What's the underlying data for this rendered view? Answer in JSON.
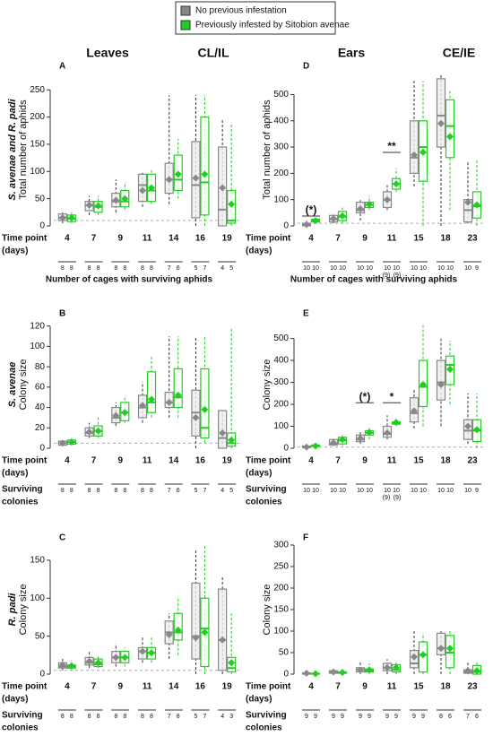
{
  "chart_data": [
    {
      "type": "box",
      "letter": "A",
      "header": "Leaves",
      "treatment": "CL/IL",
      "row_label": "S. avenae and R. padi",
      "ylabel": "Total number of aphids",
      "xlabel": [
        "Time point",
        "(days)"
      ],
      "categories": [
        "4",
        "7",
        "9",
        "11",
        "14",
        "16",
        "19"
      ],
      "ylim": [
        0,
        280
      ],
      "yticks": [
        0,
        50,
        100,
        150,
        200,
        250
      ],
      "reference_line": 10,
      "series": [
        {
          "name": "No previous infestation",
          "color": "#888888",
          "low": [
            5,
            20,
            25,
            35,
            40,
            0,
            0
          ],
          "q1": [
            10,
            28,
            35,
            45,
            60,
            15,
            0
          ],
          "median": [
            15,
            38,
            45,
            75,
            85,
            75,
            30
          ],
          "q3": [
            22,
            45,
            60,
            95,
            115,
            155,
            145
          ],
          "high": [
            25,
            55,
            85,
            100,
            240,
            240,
            195
          ],
          "mean": [
            15,
            38,
            47,
            65,
            85,
            88,
            70
          ]
        },
        {
          "name": "Previously infested by Sitobion avenae",
          "color": "#22cc22",
          "low": [
            5,
            20,
            30,
            40,
            50,
            0,
            0
          ],
          "q1": [
            8,
            25,
            35,
            45,
            65,
            20,
            5
          ],
          "median": [
            13,
            35,
            45,
            65,
            85,
            80,
            10
          ],
          "q3": [
            20,
            45,
            65,
            95,
            130,
            200,
            65
          ],
          "high": [
            25,
            55,
            80,
            105,
            160,
            240,
            190
          ],
          "mean": [
            15,
            37,
            50,
            70,
            95,
            95,
            40
          ]
        }
      ],
      "counts_label": [
        "Number of cages with surviving aphids"
      ],
      "counts": [
        [
          8,
          8
        ],
        [
          8,
          8
        ],
        [
          8,
          8
        ],
        [
          8,
          8
        ],
        [
          7,
          6
        ],
        [
          5,
          7
        ],
        [
          4,
          5
        ]
      ]
    },
    {
      "type": "box",
      "letter": "B",
      "row_label": "S. avenae",
      "ylabel": "Colony size",
      "xlabel": [
        "Time point",
        "(days)"
      ],
      "categories": [
        "4",
        "7",
        "9",
        "11",
        "14",
        "16",
        "19"
      ],
      "ylim": [
        0,
        125
      ],
      "yticks": [
        0,
        20,
        40,
        60,
        80,
        100,
        120
      ],
      "reference_line": 5,
      "series": [
        {
          "color": "#888888",
          "low": [
            2,
            10,
            22,
            25,
            30,
            0,
            0
          ],
          "q1": [
            3,
            12,
            25,
            30,
            40,
            12,
            0
          ],
          "median": [
            5,
            15,
            30,
            40,
            45,
            35,
            10
          ],
          "q3": [
            7,
            20,
            40,
            52,
            55,
            57,
            37
          ],
          "high": [
            8,
            25,
            45,
            65,
            110,
            110,
            37
          ],
          "mean": [
            5,
            16,
            32,
            42,
            45,
            30,
            15
          ]
        },
        {
          "color": "#22cc22",
          "low": [
            3,
            10,
            25,
            30,
            30,
            5,
            0
          ],
          "q1": [
            4,
            12,
            27,
            35,
            40,
            10,
            2
          ],
          "median": [
            6,
            17,
            35,
            45,
            50,
            20,
            5
          ],
          "q3": [
            8,
            22,
            45,
            75,
            78,
            78,
            15
          ],
          "high": [
            10,
            30,
            50,
            90,
            110,
            110,
            118
          ],
          "mean": [
            6,
            17,
            35,
            48,
            52,
            38,
            8
          ]
        }
      ],
      "counts_label": [
        "Surviving",
        "colonies"
      ],
      "counts": [
        [
          8,
          8
        ],
        [
          8,
          8
        ],
        [
          8,
          8
        ],
        [
          8,
          8
        ],
        [
          7,
          6
        ],
        [
          5,
          7
        ],
        [
          4,
          5
        ]
      ]
    },
    {
      "type": "box",
      "letter": "C",
      "row_label": "R. padi",
      "ylabel": "Colony size",
      "xlabel": [
        "Time point",
        "(days)"
      ],
      "categories": [
        "4",
        "7",
        "9",
        "11",
        "14",
        "16",
        "19"
      ],
      "ylim": [
        0,
        170
      ],
      "yticks": [
        0,
        50,
        100,
        150
      ],
      "reference_line": 5,
      "series": [
        {
          "color": "#888888",
          "low": [
            5,
            8,
            10,
            15,
            20,
            0,
            0
          ],
          "q1": [
            8,
            12,
            15,
            20,
            40,
            20,
            5
          ],
          "median": [
            10,
            15,
            22,
            30,
            55,
            50,
            45
          ],
          "q3": [
            15,
            22,
            30,
            35,
            70,
            120,
            112
          ],
          "high": [
            20,
            30,
            40,
            50,
            80,
            165,
            130
          ],
          "mean": [
            12,
            17,
            22,
            30,
            52,
            48,
            45
          ]
        },
        {
          "color": "#22cc22",
          "low": [
            5,
            8,
            10,
            15,
            25,
            0,
            0
          ],
          "q1": [
            8,
            10,
            15,
            20,
            45,
            10,
            3
          ],
          "median": [
            10,
            13,
            22,
            28,
            55,
            60,
            8
          ],
          "q3": [
            12,
            20,
            30,
            35,
            80,
            100,
            22
          ],
          "high": [
            18,
            25,
            35,
            50,
            100,
            170,
            80
          ],
          "mean": [
            11,
            15,
            22,
            28,
            58,
            55,
            15
          ]
        }
      ],
      "counts_label": [
        "Surviving",
        "colonies"
      ],
      "counts": [
        [
          8,
          8
        ],
        [
          8,
          8
        ],
        [
          8,
          8
        ],
        [
          8,
          8
        ],
        [
          7,
          8
        ],
        [
          5,
          7
        ],
        [
          4,
          3
        ]
      ]
    },
    {
      "type": "box",
      "letter": "D",
      "header": "Ears",
      "treatment": "CE/IE",
      "ylabel": "Total number of aphids",
      "xlabel": [
        "Time point",
        "(days)"
      ],
      "categories": [
        "4",
        "7",
        "9",
        "11",
        "15",
        "18",
        "23"
      ],
      "ylim": [
        0,
        580
      ],
      "yticks": [
        0,
        100,
        200,
        300,
        400,
        500
      ],
      "reference_line": 10,
      "series": [
        {
          "color": "#888888",
          "low": [
            0,
            10,
            20,
            60,
            150,
            0,
            10
          ],
          "q1": [
            0,
            15,
            50,
            70,
            200,
            300,
            15
          ],
          "median": [
            5,
            25,
            60,
            100,
            260,
            420,
            60
          ],
          "q3": [
            10,
            40,
            90,
            130,
            400,
            560,
            100
          ],
          "high": [
            20,
            45,
            100,
            160,
            560,
            580,
            245
          ],
          "mean": [
            5,
            28,
            65,
            100,
            270,
            390,
            90
          ]
        },
        {
          "color": "#22cc22",
          "low": [
            10,
            10,
            60,
            130,
            0,
            60,
            0
          ],
          "q1": [
            15,
            20,
            70,
            140,
            170,
            260,
            30
          ],
          "median": [
            20,
            35,
            80,
            160,
            300,
            380,
            75
          ],
          "q3": [
            25,
            55,
            90,
            180,
            400,
            480,
            130
          ],
          "high": [
            30,
            70,
            115,
            220,
            550,
            520,
            250
          ],
          "mean": [
            20,
            38,
            82,
            160,
            280,
            340,
            80
          ]
        }
      ],
      "annotations": [
        {
          "category": "4",
          "label": "(*)"
        },
        {
          "category": "11",
          "label": "**"
        }
      ],
      "counts_label": [
        "Number of cages with surviving aphids"
      ],
      "counts": [
        [
          10,
          10
        ],
        [
          10,
          10
        ],
        [
          10,
          10
        ],
        [
          10,
          10
        ],
        [
          10,
          10
        ],
        [
          10,
          10
        ],
        [
          10,
          9
        ]
      ],
      "count_notes": [
        null,
        null,
        null,
        [
          "(9)",
          "(9)"
        ],
        null,
        null,
        null
      ]
    },
    {
      "type": "box",
      "letter": "E",
      "ylabel": "Colony size",
      "xlabel": [
        "Time point",
        "(days)"
      ],
      "categories": [
        "4",
        "7",
        "9",
        "11",
        "15",
        "18",
        "23"
      ],
      "ylim": [
        0,
        580
      ],
      "yticks": [
        0,
        100,
        200,
        300,
        400,
        500
      ],
      "reference_line": 5,
      "series": [
        {
          "color": "#888888",
          "low": [
            0,
            10,
            20,
            40,
            90,
            100,
            20
          ],
          "q1": [
            2,
            15,
            30,
            50,
            120,
            220,
            40
          ],
          "median": [
            5,
            20,
            40,
            65,
            160,
            300,
            80
          ],
          "q3": [
            10,
            40,
            60,
            100,
            230,
            400,
            130
          ],
          "high": [
            15,
            50,
            80,
            150,
            270,
            500,
            250
          ],
          "mean": [
            5,
            25,
            45,
            70,
            170,
            290,
            100
          ]
        },
        {
          "color": "#22cc22",
          "low": [
            5,
            10,
            40,
            100,
            100,
            200,
            0
          ],
          "q1": [
            8,
            20,
            60,
            110,
            190,
            290,
            30
          ],
          "median": [
            10,
            35,
            70,
            115,
            280,
            380,
            80
          ],
          "q3": [
            15,
            50,
            80,
            120,
            400,
            420,
            130
          ],
          "high": [
            20,
            60,
            100,
            135,
            570,
            490,
            250
          ],
          "mean": [
            10,
            40,
            72,
            118,
            290,
            360,
            85
          ]
        }
      ],
      "annotations": [
        {
          "category": "9",
          "label": "(*)"
        },
        {
          "category": "11",
          "label": "*"
        }
      ],
      "counts_label": [
        "Surviving",
        "colonies"
      ],
      "counts": [
        [
          10,
          10
        ],
        [
          10,
          10
        ],
        [
          10,
          10
        ],
        [
          10,
          10
        ],
        [
          10,
          10
        ],
        [
          10,
          10
        ],
        [
          10,
          9
        ]
      ],
      "count_notes": [
        null,
        null,
        null,
        [
          "(9)",
          "(9)"
        ],
        null,
        null,
        null
      ]
    },
    {
      "type": "box",
      "letter": "F",
      "ylabel": "Colony size",
      "xlabel": [
        "Time point",
        "(days)"
      ],
      "categories": [
        "4",
        "7",
        "9",
        "11",
        "15",
        "18",
        "23"
      ],
      "ylim": [
        0,
        300
      ],
      "yticks": [
        0,
        50,
        100,
        150,
        200,
        250,
        300
      ],
      "series": [
        {
          "color": "#888888",
          "low": [
            0,
            0,
            0,
            0,
            0,
            0,
            0
          ],
          "q1": [
            0,
            2,
            5,
            8,
            15,
            45,
            2
          ],
          "median": [
            2,
            5,
            10,
            15,
            25,
            60,
            5
          ],
          "q3": [
            3,
            8,
            15,
            25,
            55,
            95,
            10
          ],
          "high": [
            5,
            10,
            30,
            35,
            100,
            100,
            30
          ],
          "mean": [
            2,
            5,
            10,
            15,
            40,
            60,
            8
          ]
        },
        {
          "color": "#22cc22",
          "low": [
            0,
            0,
            0,
            0,
            0,
            0,
            0
          ],
          "q1": [
            0,
            2,
            5,
            5,
            5,
            15,
            0
          ],
          "median": [
            1,
            3,
            8,
            10,
            45,
            50,
            5
          ],
          "q3": [
            2,
            5,
            12,
            22,
            75,
            90,
            20
          ],
          "high": [
            3,
            10,
            25,
            30,
            95,
            100,
            30
          ],
          "mean": [
            1,
            4,
            10,
            15,
            45,
            60,
            8
          ]
        }
      ],
      "counts_label": [
        "Surviving",
        "colonies"
      ],
      "counts": [
        [
          9,
          9
        ],
        [
          9,
          9
        ],
        [
          9,
          9
        ],
        [
          9,
          9
        ],
        [
          9,
          9
        ],
        [
          8,
          6
        ],
        [
          7,
          6
        ]
      ]
    }
  ]
}
